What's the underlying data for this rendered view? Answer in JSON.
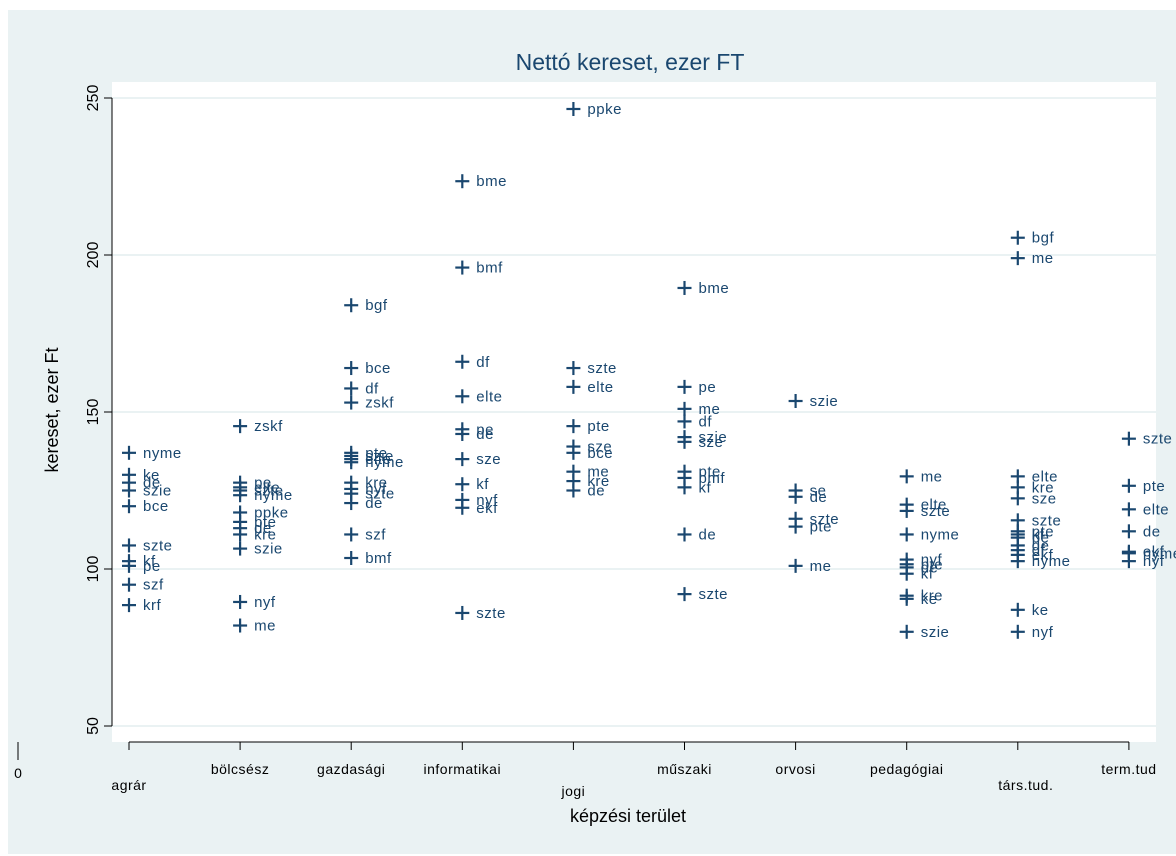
{
  "chart_data": {
    "type": "scatter",
    "title": "Nettó kereset, ezer FT",
    "xlabel": "képzési terület",
    "ylabel": "kereset, ezer Ft",
    "ylim": [
      50,
      250
    ],
    "yticks": [
      50,
      100,
      150,
      200,
      250
    ],
    "x_zero_label": "0",
    "grid": "horizontal",
    "marker": "plus",
    "colors": {
      "background": "#eaf2f3",
      "plot": "#ffffff",
      "grid": "#eaf2f3",
      "marker": "#1a476f"
    },
    "categories": [
      "agrár",
      "bölcsész",
      "gazdasági",
      "informatikai",
      "jogi",
      "műszaki",
      "orvosi",
      "pedagógiai",
      "társ.tud.",
      "term.tud"
    ],
    "points": [
      {
        "cat": 0,
        "y": 137,
        "label": "nyme"
      },
      {
        "cat": 0,
        "y": 130,
        "label": "ke"
      },
      {
        "cat": 0,
        "y": 127.5,
        "label": "de"
      },
      {
        "cat": 0,
        "y": 125,
        "label": "szie"
      },
      {
        "cat": 0,
        "y": 120,
        "label": "bce"
      },
      {
        "cat": 0,
        "y": 107.5,
        "label": "szte"
      },
      {
        "cat": 0,
        "y": 102.5,
        "label": "kf"
      },
      {
        "cat": 0,
        "y": 101,
        "label": "pe"
      },
      {
        "cat": 0,
        "y": 95,
        "label": "szf"
      },
      {
        "cat": 0,
        "y": 88.5,
        "label": "krf"
      },
      {
        "cat": 1,
        "y": 145.5,
        "label": "zskf"
      },
      {
        "cat": 1,
        "y": 127.5,
        "label": "pe"
      },
      {
        "cat": 1,
        "y": 126,
        "label": "elte"
      },
      {
        "cat": 1,
        "y": 125,
        "label": "szte"
      },
      {
        "cat": 1,
        "y": 123.5,
        "label": "nyme"
      },
      {
        "cat": 1,
        "y": 118,
        "label": "ppke"
      },
      {
        "cat": 1,
        "y": 115,
        "label": "pte"
      },
      {
        "cat": 1,
        "y": 113,
        "label": "de"
      },
      {
        "cat": 1,
        "y": 111,
        "label": "kre"
      },
      {
        "cat": 1,
        "y": 106.5,
        "label": "szie"
      },
      {
        "cat": 1,
        "y": 89.5,
        "label": "nyf"
      },
      {
        "cat": 1,
        "y": 82,
        "label": "me"
      },
      {
        "cat": 2,
        "y": 184,
        "label": "bgf"
      },
      {
        "cat": 2,
        "y": 164,
        "label": "bce"
      },
      {
        "cat": 2,
        "y": 157.5,
        "label": "df"
      },
      {
        "cat": 2,
        "y": 153,
        "label": "zskf"
      },
      {
        "cat": 2,
        "y": 137,
        "label": "pte"
      },
      {
        "cat": 2,
        "y": 136,
        "label": "szie"
      },
      {
        "cat": 2,
        "y": 135,
        "label": "elte"
      },
      {
        "cat": 2,
        "y": 134,
        "label": "nyme"
      },
      {
        "cat": 2,
        "y": 127.5,
        "label": "kre"
      },
      {
        "cat": 2,
        "y": 125.5,
        "label": "nyf"
      },
      {
        "cat": 2,
        "y": 124,
        "label": "szte"
      },
      {
        "cat": 2,
        "y": 121,
        "label": "de"
      },
      {
        "cat": 2,
        "y": 111,
        "label": "szf"
      },
      {
        "cat": 2,
        "y": 103.5,
        "label": "bmf"
      },
      {
        "cat": 3,
        "y": 223.5,
        "label": "bme"
      },
      {
        "cat": 3,
        "y": 196,
        "label": "bmf"
      },
      {
        "cat": 3,
        "y": 166,
        "label": "df"
      },
      {
        "cat": 3,
        "y": 155,
        "label": "elte"
      },
      {
        "cat": 3,
        "y": 144.5,
        "label": "pe"
      },
      {
        "cat": 3,
        "y": 143,
        "label": "de"
      },
      {
        "cat": 3,
        "y": 135,
        "label": "sze"
      },
      {
        "cat": 3,
        "y": 127,
        "label": "kf"
      },
      {
        "cat": 3,
        "y": 122,
        "label": "nyf"
      },
      {
        "cat": 3,
        "y": 119.5,
        "label": "ekf"
      },
      {
        "cat": 3,
        "y": 86,
        "label": "szte"
      },
      {
        "cat": 4,
        "y": 246.5,
        "label": "ppke"
      },
      {
        "cat": 4,
        "y": 164,
        "label": "szte"
      },
      {
        "cat": 4,
        "y": 158,
        "label": "elte"
      },
      {
        "cat": 4,
        "y": 145.5,
        "label": "pte"
      },
      {
        "cat": 4,
        "y": 139,
        "label": "sze"
      },
      {
        "cat": 4,
        "y": 137,
        "label": "bce"
      },
      {
        "cat": 4,
        "y": 131,
        "label": "me"
      },
      {
        "cat": 4,
        "y": 128,
        "label": "kre"
      },
      {
        "cat": 4,
        "y": 125,
        "label": "de"
      },
      {
        "cat": 5,
        "y": 189.5,
        "label": "bme"
      },
      {
        "cat": 5,
        "y": 158,
        "label": "pe"
      },
      {
        "cat": 5,
        "y": 151,
        "label": "me"
      },
      {
        "cat": 5,
        "y": 147,
        "label": "df"
      },
      {
        "cat": 5,
        "y": 142,
        "label": "szie"
      },
      {
        "cat": 5,
        "y": 140.5,
        "label": "sze"
      },
      {
        "cat": 5,
        "y": 131,
        "label": "pte"
      },
      {
        "cat": 5,
        "y": 129,
        "label": "bmf"
      },
      {
        "cat": 5,
        "y": 126,
        "label": "kf"
      },
      {
        "cat": 5,
        "y": 111,
        "label": "de"
      },
      {
        "cat": 5,
        "y": 92,
        "label": "szte"
      },
      {
        "cat": 6,
        "y": 153.5,
        "label": "szie"
      },
      {
        "cat": 6,
        "y": 125,
        "label": "se"
      },
      {
        "cat": 6,
        "y": 123,
        "label": "de"
      },
      {
        "cat": 6,
        "y": 116,
        "label": "szte"
      },
      {
        "cat": 6,
        "y": 113.5,
        "label": "pte"
      },
      {
        "cat": 6,
        "y": 101,
        "label": "me"
      },
      {
        "cat": 7,
        "y": 129.5,
        "label": "me"
      },
      {
        "cat": 7,
        "y": 120.5,
        "label": "elte"
      },
      {
        "cat": 7,
        "y": 118.5,
        "label": "szte"
      },
      {
        "cat": 7,
        "y": 111,
        "label": "nyme"
      },
      {
        "cat": 7,
        "y": 103,
        "label": "nyf"
      },
      {
        "cat": 7,
        "y": 101.5,
        "label": "pte"
      },
      {
        "cat": 7,
        "y": 100.5,
        "label": "de"
      },
      {
        "cat": 7,
        "y": 98.5,
        "label": "kf"
      },
      {
        "cat": 7,
        "y": 91.5,
        "label": "kre"
      },
      {
        "cat": 7,
        "y": 90.5,
        "label": "ke"
      },
      {
        "cat": 7,
        "y": 80,
        "label": "szie"
      },
      {
        "cat": 8,
        "y": 205.5,
        "label": "bgf"
      },
      {
        "cat": 8,
        "y": 199,
        "label": "me"
      },
      {
        "cat": 8,
        "y": 129.5,
        "label": "elte"
      },
      {
        "cat": 8,
        "y": 126,
        "label": "kre"
      },
      {
        "cat": 8,
        "y": 122.5,
        "label": "sze"
      },
      {
        "cat": 8,
        "y": 115.5,
        "label": "szte"
      },
      {
        "cat": 8,
        "y": 112,
        "label": "pte"
      },
      {
        "cat": 8,
        "y": 111,
        "label": "kf"
      },
      {
        "cat": 8,
        "y": 110,
        "label": "pe"
      },
      {
        "cat": 8,
        "y": 107.5,
        "label": "de"
      },
      {
        "cat": 8,
        "y": 106,
        "label": "df"
      },
      {
        "cat": 8,
        "y": 104.5,
        "label": "ekf"
      },
      {
        "cat": 8,
        "y": 102.5,
        "label": "nyme"
      },
      {
        "cat": 8,
        "y": 87,
        "label": "ke"
      },
      {
        "cat": 8,
        "y": 80,
        "label": "nyf"
      },
      {
        "cat": 9,
        "y": 141.5,
        "label": "szte"
      },
      {
        "cat": 9,
        "y": 126.5,
        "label": "pte"
      },
      {
        "cat": 9,
        "y": 119,
        "label": "elte"
      },
      {
        "cat": 9,
        "y": 112,
        "label": "de"
      },
      {
        "cat": 9,
        "y": 105.5,
        "label": "ekf"
      },
      {
        "cat": 9,
        "y": 105,
        "label": "nyme"
      },
      {
        "cat": 9,
        "y": 102.5,
        "label": "nyf"
      }
    ]
  }
}
